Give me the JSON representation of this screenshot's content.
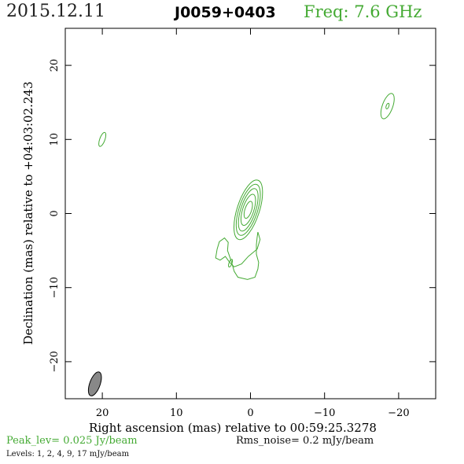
{
  "header": {
    "date": "2015.12.11",
    "source": "J0059+0403",
    "freq": "Freq: 7.6 GHz"
  },
  "footer": {
    "peak": "Peak_lev=  0.025 Jy/beam",
    "rms": "Rms_noise=  0.2 mJy/beam",
    "levels": "Levels:   1,   2,   4,   9,  17 mJy/beam"
  },
  "colors": {
    "contour": "#44aa33",
    "beam_fill": "#888888",
    "frame": "#000000"
  },
  "chart_data": {
    "type": "contour",
    "xlabel": "Right ascension (mas) relative to 00:59:25.3278",
    "ylabel": "Declination (mas) relative to +04:03:02.243",
    "xlim": [
      25,
      -25
    ],
    "ylim": [
      -25,
      25
    ],
    "x_ticks": [
      20,
      10,
      0,
      -10,
      -20
    ],
    "x_tick_labels": [
      "20",
      "10",
      "0",
      "−10",
      "−20"
    ],
    "y_ticks": [
      20,
      10,
      0,
      -10,
      -20
    ],
    "y_tick_labels": [
      "20",
      "10",
      "0",
      "−10",
      "−20"
    ],
    "levels_mJy": [
      1,
      2,
      4,
      9,
      17
    ],
    "peak_Jy_per_beam": 0.025,
    "rms_mJy_per_beam": 0.2,
    "beam": {
      "x": 21,
      "y": -23,
      "major": 3.4,
      "minor": 1.4,
      "pa_deg": 20
    },
    "components": [
      {
        "name": "core",
        "x": 0.3,
        "y": 0.5,
        "contours": [
          {
            "rx": 1.5,
            "ry": 4.2
          },
          {
            "rx": 1.25,
            "ry": 3.6
          },
          {
            "rx": 1.0,
            "ry": 3.0
          },
          {
            "rx": 0.75,
            "ry": 2.2
          },
          {
            "rx": 0.45,
            "ry": 1.2
          }
        ],
        "pa_deg": 18
      },
      {
        "name": "south-jet",
        "x": -2.5,
        "y": -6.5
      },
      {
        "name": "ne-blob",
        "x": -18.5,
        "y": 14.5,
        "contours": [
          {
            "rx": 0.7,
            "ry": 1.8
          },
          {
            "rx": 0.18,
            "ry": 0.4
          }
        ],
        "pa_deg": 20
      },
      {
        "name": "nw-blob",
        "x": 20,
        "y": 10,
        "contours": [
          {
            "rx": 0.35,
            "ry": 1.0
          }
        ],
        "pa_deg": 20
      }
    ],
    "jet_path": [
      [
        -1.0,
        -2.5
      ],
      [
        -1.3,
        -3.5
      ],
      [
        -0.9,
        -4.8
      ],
      [
        0.3,
        -5.8
      ],
      [
        1.2,
        -6.8
      ],
      [
        2.2,
        -7.2
      ],
      [
        2.8,
        -6.6
      ],
      [
        3.4,
        -5.8
      ],
      [
        4.1,
        -6.3
      ],
      [
        4.7,
        -6.0
      ],
      [
        4.5,
        -4.8
      ],
      [
        4.2,
        -3.8
      ],
      [
        3.5,
        -3.3
      ],
      [
        3.0,
        -3.9
      ],
      [
        3.1,
        -5.0
      ],
      [
        2.6,
        -6.4
      ],
      [
        2.2,
        -7.8
      ],
      [
        1.7,
        -8.6
      ],
      [
        0.4,
        -8.9
      ],
      [
        -0.6,
        -8.6
      ],
      [
        -1.0,
        -7.5
      ],
      [
        -1.1,
        -6.6
      ],
      [
        -0.8,
        -5.5
      ],
      [
        -0.8,
        -4.2
      ],
      [
        -0.9,
        -3.2
      ]
    ],
    "jet_inner": {
      "x": 2.7,
      "y": -6.7,
      "rx": 0.2,
      "ry": 0.55
    }
  }
}
